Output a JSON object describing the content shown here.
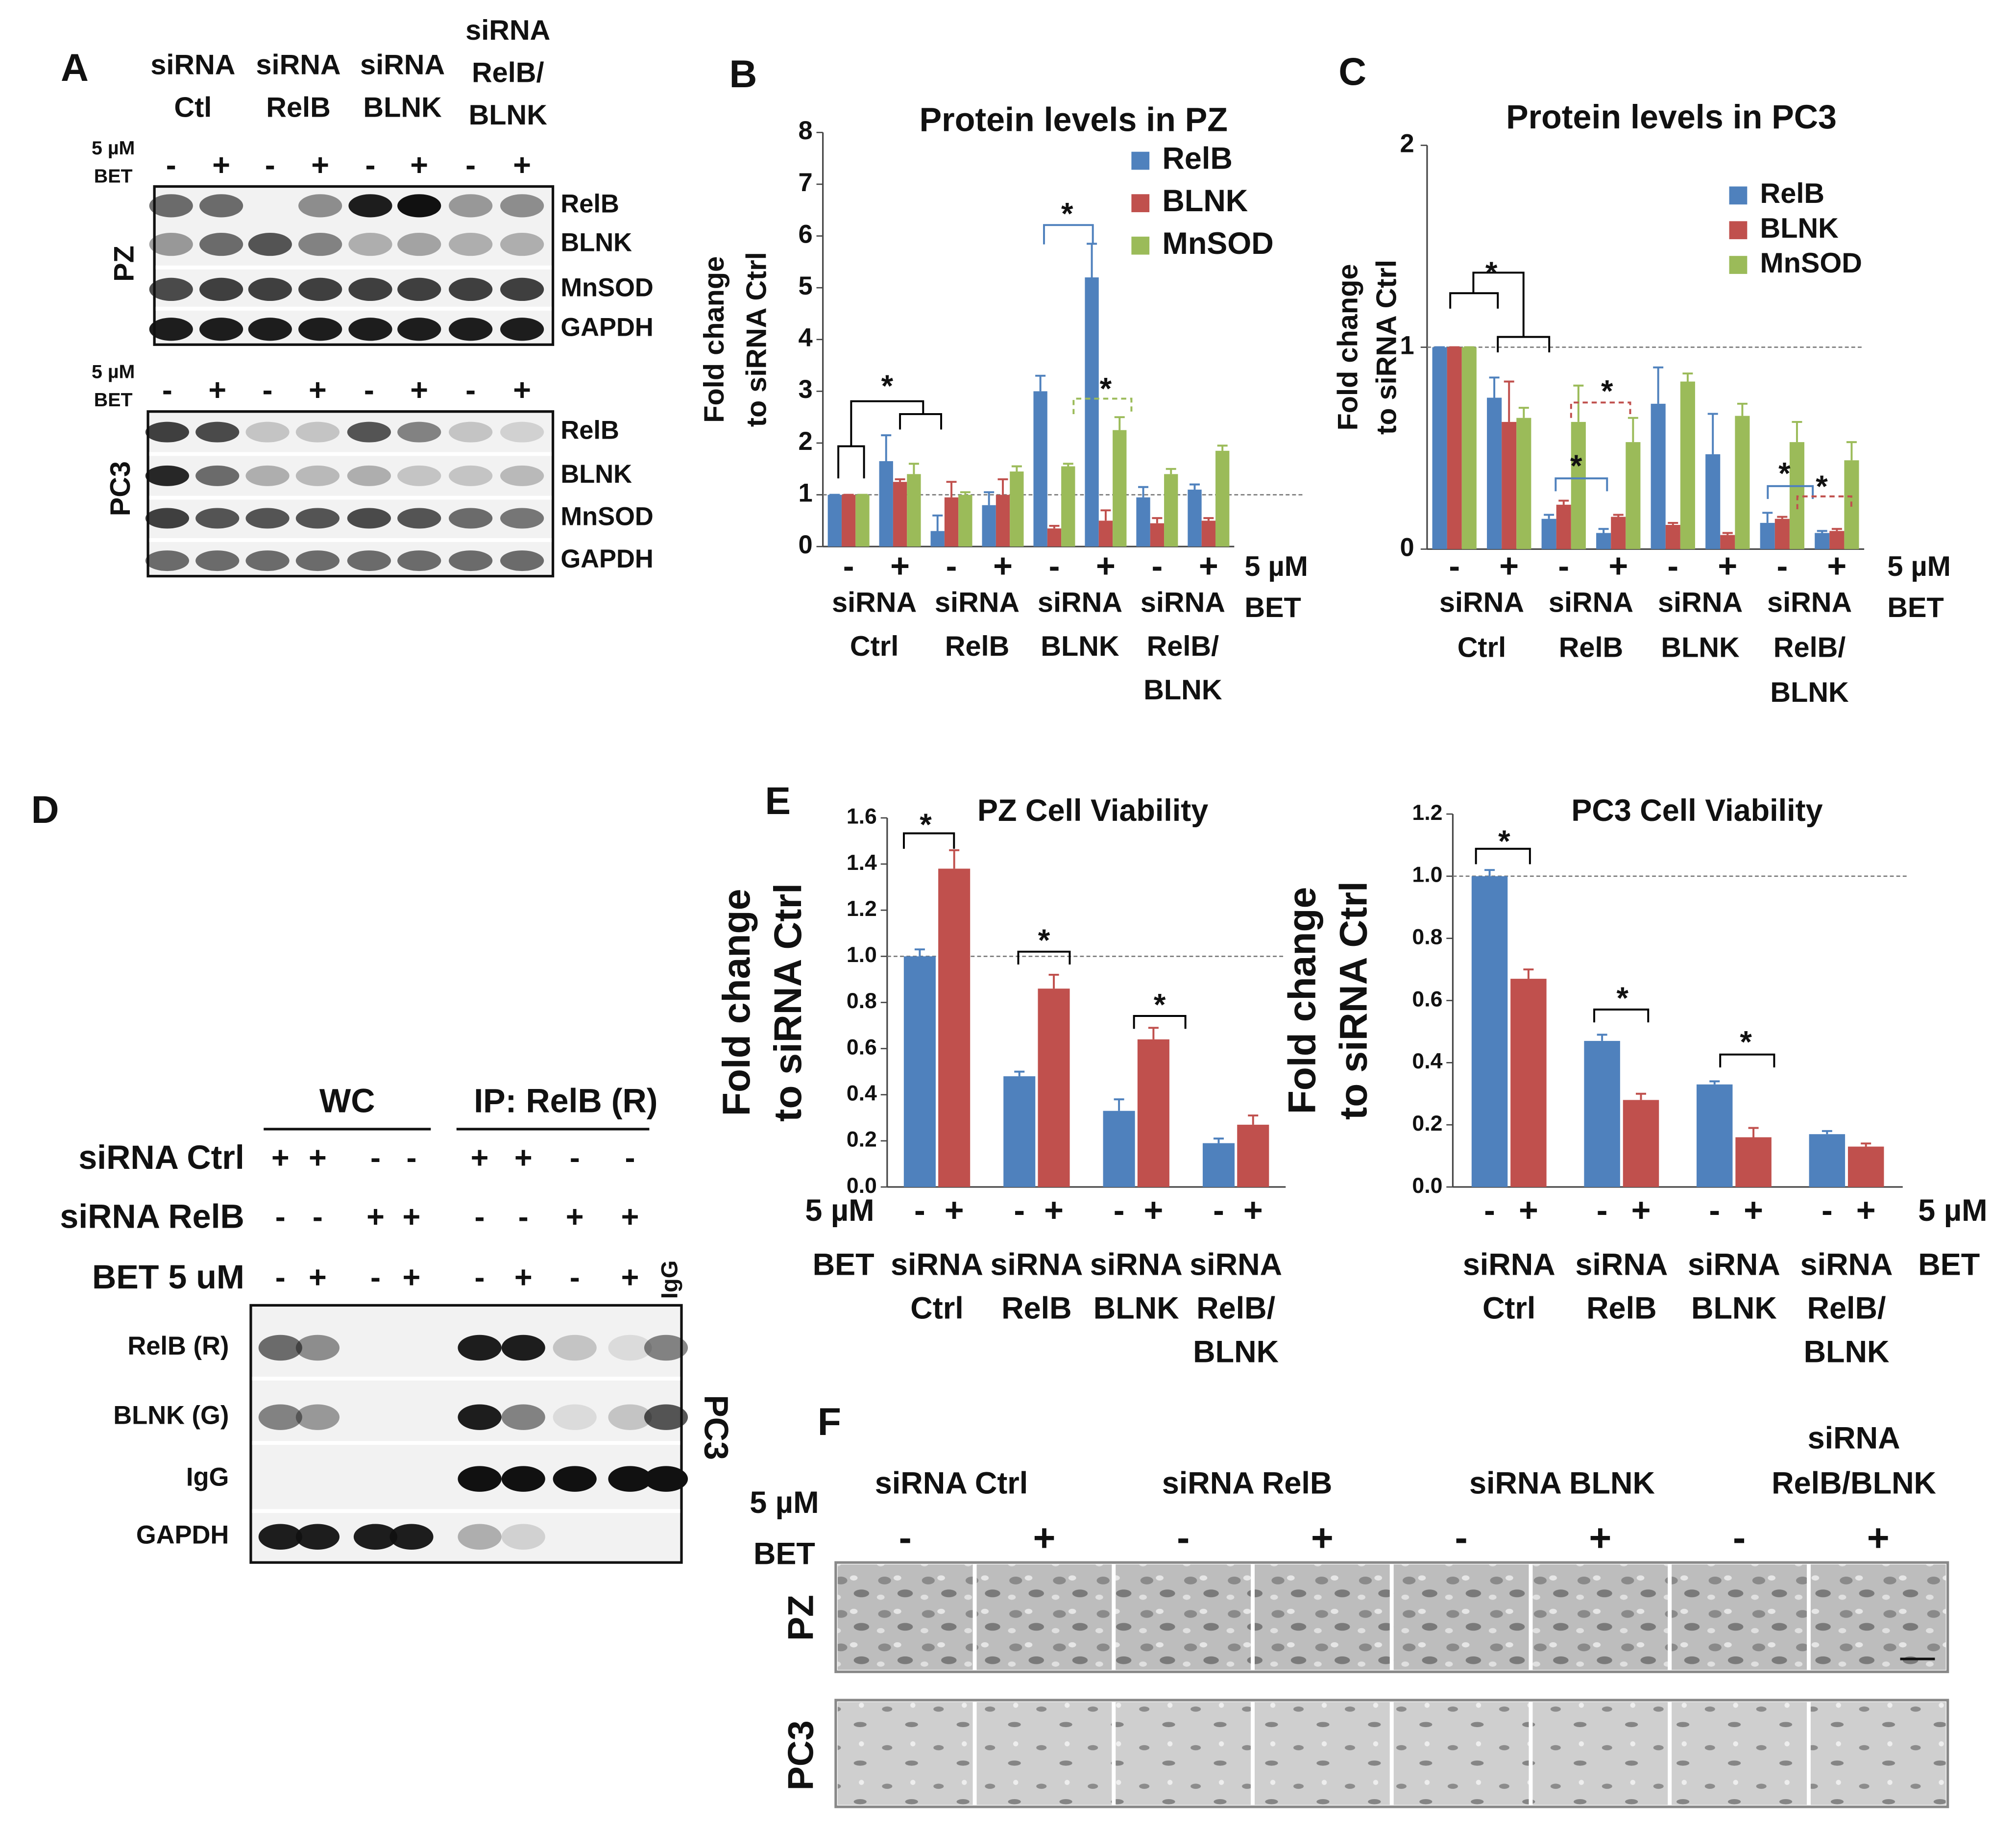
{
  "letters": [
    "A",
    "B",
    "C",
    "D",
    "E",
    "F"
  ],
  "panels": {
    "A": {
      "columns": [
        [
          "siRNA",
          "Ctl"
        ],
        [
          "siRNA",
          "RelB"
        ],
        [
          "siRNA",
          "BLNK"
        ],
        [
          "siRNA",
          "RelB/",
          "BLNK"
        ]
      ],
      "treatment": [
        "5 µM",
        "BET"
      ],
      "signs": [
        "-",
        "+",
        "-",
        "+",
        "-",
        "+",
        "-",
        "+"
      ],
      "blots": [
        {
          "cell": "PZ",
          "bands": [
            "RelB",
            "BLNK",
            "MnSOD",
            "GAPDH"
          ]
        },
        {
          "cell": "PC3",
          "bands": [
            "RelB",
            "BLNK",
            "MnSOD",
            "GAPDH"
          ]
        }
      ]
    },
    "D": {
      "groups": [
        "WC",
        "IP: RelB (R)"
      ],
      "rows": [
        {
          "label": "siRNA Ctrl",
          "signs": [
            "+",
            "+",
            "-",
            "-",
            "+",
            "+",
            "-",
            "-"
          ]
        },
        {
          "label": "siRNA RelB",
          "signs": [
            "-",
            "-",
            "+",
            "+",
            "-",
            "-",
            "+",
            "+"
          ]
        },
        {
          "label": "BET 5 uM",
          "signs": [
            "-",
            "+",
            "-",
            "+",
            "-",
            "+",
            "-",
            "+"
          ]
        }
      ],
      "extra_lane": "IgG",
      "bands": [
        "RelB (R)",
        "BLNK (G)",
        "IgG",
        "GAPDH"
      ],
      "cell": "PC3"
    },
    "F": {
      "columns": [
        [
          "siRNA Ctrl"
        ],
        [
          "siRNA RelB"
        ],
        [
          "siRNA BLNK"
        ],
        [
          "siRNA",
          "RelB/BLNK"
        ]
      ],
      "treatment": [
        "5 µM",
        "BET"
      ],
      "signs": [
        "-",
        "+",
        "-",
        "+",
        "-",
        "+",
        "-",
        "+"
      ],
      "rows": [
        "PZ",
        "PC3"
      ]
    }
  },
  "chart_data": [
    {
      "type": "bar",
      "title": "Protein levels in PZ",
      "ylabel": [
        "Fold change",
        "to siRNA Ctrl"
      ],
      "categories": [
        "-",
        "+",
        "-",
        "+",
        "-",
        "+",
        "-",
        "+"
      ],
      "groups": [
        [
          "siRNA",
          "Ctrl"
        ],
        [
          "siRNA",
          "RelB"
        ],
        [
          "siRNA",
          "BLNK"
        ],
        [
          "siRNA",
          "RelB/",
          "BLNK"
        ]
      ],
      "xnote": [
        "5 µM",
        "BET"
      ],
      "series": [
        {
          "name": "RelB",
          "color": "#4f81bd",
          "values": [
            1,
            1.65,
            0.3,
            0.8,
            3.0,
            5.2,
            0.95,
            1.1
          ],
          "errors": [
            0,
            0.5,
            0.3,
            0.25,
            0.3,
            0.65,
            0.2,
            0.1
          ]
        },
        {
          "name": "BLNK",
          "color": "#c0504d",
          "values": [
            1,
            1.25,
            0.95,
            1.0,
            0.35,
            0.5,
            0.45,
            0.5
          ],
          "errors": [
            0,
            0.05,
            0.3,
            0.3,
            0.05,
            0.2,
            0.1,
            0.05
          ]
        },
        {
          "name": "MnSOD",
          "color": "#9bbb59",
          "values": [
            1,
            1.4,
            1.0,
            1.45,
            1.55,
            2.25,
            1.4,
            1.85
          ],
          "errors": [
            0,
            0.2,
            0.05,
            0.1,
            0.05,
            0.25,
            0.1,
            0.1
          ]
        }
      ],
      "ylim": [
        0,
        8
      ],
      "yticks": [
        0,
        1,
        2,
        3,
        4,
        5,
        6,
        7,
        8
      ],
      "reference_line": 1,
      "legend": "upper right",
      "annotations": [
        {
          "text": "*",
          "color": "#000000"
        },
        {
          "text": "*",
          "color": "#4f81bd"
        },
        {
          "text": "*",
          "color": "#9bbb59"
        }
      ]
    },
    {
      "type": "bar",
      "title": "Protein levels in PC3",
      "ylabel": [
        "Fold change",
        "to siRNA Ctrl"
      ],
      "categories": [
        "-",
        "+",
        "-",
        "+",
        "-",
        "+",
        "-",
        "+"
      ],
      "groups": [
        [
          "siRNA",
          "Ctrl"
        ],
        [
          "siRNA",
          "RelB"
        ],
        [
          "siRNA",
          "BLNK"
        ],
        [
          "siRNA",
          "RelB/",
          "BLNK"
        ]
      ],
      "xnote": [
        "5 µM",
        "BET"
      ],
      "series": [
        {
          "name": "RelB",
          "color": "#4f81bd",
          "values": [
            1,
            0.75,
            0.15,
            0.08,
            0.72,
            0.47,
            0.13,
            0.08
          ],
          "errors": [
            0,
            0.1,
            0.02,
            0.02,
            0.18,
            0.2,
            0.05,
            0.01
          ]
        },
        {
          "name": "BLNK",
          "color": "#c0504d",
          "values": [
            1,
            0.63,
            0.22,
            0.16,
            0.12,
            0.07,
            0.15,
            0.09
          ],
          "errors": [
            0,
            0.2,
            0.02,
            0.01,
            0.01,
            0.01,
            0.01,
            0.01
          ]
        },
        {
          "name": "MnSOD",
          "color": "#9bbb59",
          "values": [
            1,
            0.65,
            0.63,
            0.53,
            0.83,
            0.66,
            0.53,
            0.44
          ],
          "errors": [
            0,
            0.05,
            0.18,
            0.12,
            0.04,
            0.06,
            0.1,
            0.09
          ]
        }
      ],
      "ylim": [
        0,
        2
      ],
      "yticks": [
        0,
        1,
        2
      ],
      "reference_line": 1,
      "legend": "upper right",
      "annotations": [
        {
          "text": "*",
          "color": "#000000"
        },
        {
          "text": "*",
          "color": "#c0504d"
        },
        {
          "text": "*",
          "color": "#4f81bd"
        },
        {
          "text": "*",
          "color": "#4f81bd"
        },
        {
          "text": "*",
          "color": "#c0504d"
        }
      ]
    },
    {
      "type": "bar",
      "title": "PZ Cell Viability",
      "ylabel": [
        "Fold change",
        "to siRNA Ctrl"
      ],
      "categories": [
        [
          "siRNA",
          "Ctrl"
        ],
        [
          "siRNA",
          "RelB"
        ],
        [
          "siRNA",
          "BLNK"
        ],
        [
          "siRNA",
          "RelB/",
          "BLNK"
        ]
      ],
      "xnote": [
        "5 µM",
        "BET"
      ],
      "series": [
        {
          "name": "-",
          "color": "#4f81bd",
          "values": [
            1.0,
            0.48,
            0.33,
            0.19
          ],
          "errors": [
            0.03,
            0.02,
            0.05,
            0.02
          ]
        },
        {
          "name": "+",
          "color": "#c0504d",
          "values": [
            1.38,
            0.86,
            0.64,
            0.27
          ],
          "errors": [
            0.08,
            0.06,
            0.05,
            0.04
          ]
        }
      ],
      "ylim": [
        0,
        1.6
      ],
      "yticks": [
        {
          "value": 0,
          "label": "0.0"
        },
        {
          "value": 0.2,
          "label": "0.2"
        },
        {
          "value": 0.4,
          "label": "0.4"
        },
        {
          "value": 0.6,
          "label": "0.6"
        },
        {
          "value": 0.8,
          "label": "0.8"
        },
        {
          "value": 1,
          "label": "1.0"
        },
        {
          "value": 1.2,
          "label": "1.2"
        },
        {
          "value": 1.4,
          "label": "1.4"
        },
        {
          "value": 1.6,
          "label": "1.6"
        }
      ],
      "reference_line": 1,
      "annotations": [
        {
          "text": "*",
          "color": "#000000"
        },
        {
          "text": "*",
          "color": "#000000"
        },
        {
          "text": "*",
          "color": "#000000"
        }
      ]
    },
    {
      "type": "bar",
      "title": "PC3 Cell Viability",
      "ylabel": [
        "Fold change",
        "to siRNA Ctrl"
      ],
      "categories": [
        [
          "siRNA",
          "Ctrl"
        ],
        [
          "siRNA",
          "RelB"
        ],
        [
          "siRNA",
          "BLNK"
        ],
        [
          "siRNA",
          "RelB/",
          "BLNK"
        ]
      ],
      "xnote": [
        "5 µM",
        "BET"
      ],
      "series": [
        {
          "name": "-",
          "color": "#4f81bd",
          "values": [
            1.0,
            0.47,
            0.33,
            0.17
          ],
          "errors": [
            0.02,
            0.02,
            0.01,
            0.01
          ]
        },
        {
          "name": "+",
          "color": "#c0504d",
          "values": [
            0.67,
            0.28,
            0.16,
            0.13
          ],
          "errors": [
            0.03,
            0.02,
            0.03,
            0.01
          ]
        }
      ],
      "ylim": [
        0,
        1.2
      ],
      "yticks": [
        {
          "value": 0,
          "label": "0.0"
        },
        {
          "value": 0.2,
          "label": "0.2"
        },
        {
          "value": 0.4,
          "label": "0.4"
        },
        {
          "value": 0.6,
          "label": "0.6"
        },
        {
          "value": 0.8,
          "label": "0.8"
        },
        {
          "value": 1,
          "label": "1.0"
        },
        {
          "value": 1.2,
          "label": "1.2"
        }
      ],
      "reference_line": 1,
      "annotations": [
        {
          "text": "*",
          "color": "#000000"
        },
        {
          "text": "*",
          "color": "#000000"
        },
        {
          "text": "*",
          "color": "#000000"
        }
      ]
    }
  ]
}
